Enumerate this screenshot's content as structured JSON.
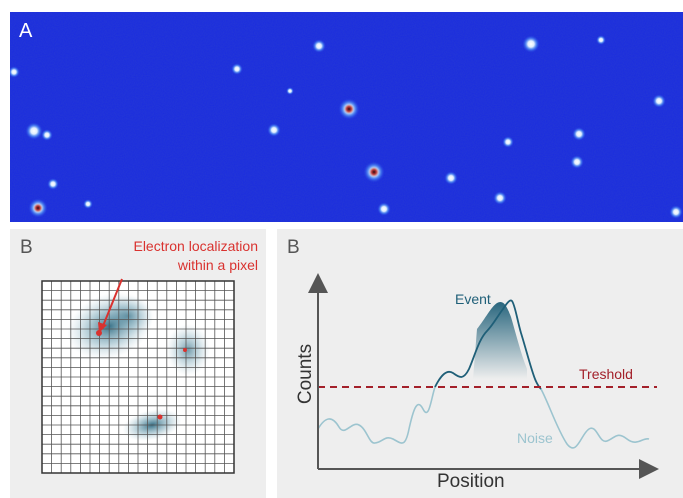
{
  "panel_a": {
    "label": "A"
  },
  "panel_b_left": {
    "label": "B",
    "annotation_line1": "Electron localization",
    "annotation_line2": "within a pixel",
    "annotation_color": "#d9322f"
  },
  "panel_b_right": {
    "label": "B",
    "event_label": "Event",
    "threshold_label": "Treshold",
    "noise_label": "Noise",
    "y_axis_label": "Counts",
    "x_axis_label": "Position",
    "colors": {
      "signal_dark": "#1f5f78",
      "noise": "#9cc4cf",
      "threshold": "#a3202a",
      "axis": "#555555"
    }
  },
  "colors": {
    "detector_background": "#1a2be0",
    "panel_background": "#eeeeee"
  }
}
